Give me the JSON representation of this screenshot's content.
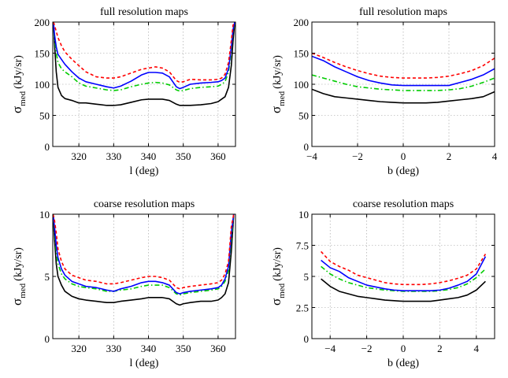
{
  "colors": {
    "black": "#000000",
    "blue": "#0000ff",
    "red": "#ff0000",
    "green": "#00cc00"
  },
  "chart_data": [
    {
      "type": "line",
      "title": "full resolution maps",
      "xlabel": "l (deg)",
      "ylabel_main": "σ",
      "ylabel_sub": "med",
      "ylabel_unit": "(kJy/sr)",
      "xlim": [
        312.5,
        365
      ],
      "ylim": [
        0,
        200
      ],
      "xticks": [
        320,
        330,
        340,
        350,
        360
      ],
      "yticks": [
        0,
        50,
        100,
        150,
        200
      ],
      "xtick_labels": [
        "320",
        "330",
        "340",
        "350",
        "360"
      ],
      "ytick_labels": [
        "0",
        "50",
        "100",
        "150",
        "200"
      ],
      "grid": true,
      "series": [
        {
          "color": "#000000",
          "dash": "solid",
          "x": [
            312.7,
            313.0,
            313.5,
            314,
            315,
            316,
            318,
            320,
            322,
            325,
            328,
            330,
            332,
            335,
            338,
            340,
            342,
            344,
            346,
            348,
            349,
            350,
            352,
            355,
            358,
            360,
            361,
            362,
            363,
            363.8,
            364.3,
            364.8
          ],
          "y": [
            200,
            165,
            120,
            95,
            82,
            77,
            74,
            70,
            70,
            68,
            66,
            66,
            67,
            71,
            75,
            76,
            76,
            76,
            74,
            68,
            66,
            66,
            66,
            67,
            69,
            72,
            76,
            80,
            95,
            130,
            170,
            200
          ]
        },
        {
          "color": "#00cc00",
          "dash": "6 3 1.5 3",
          "x": [
            312.7,
            313.0,
            313.5,
            314,
            315,
            316,
            318,
            320,
            322,
            325,
            328,
            330,
            332,
            335,
            338,
            340,
            342,
            344,
            346,
            348,
            349,
            350,
            352,
            355,
            358,
            360,
            361,
            362,
            363,
            363.8,
            364.3,
            364.8
          ],
          "y": [
            200,
            175,
            150,
            135,
            125,
            120,
            112,
            102,
            97,
            94,
            91,
            90,
            91,
            96,
            100,
            102,
            103,
            102,
            99,
            91,
            89,
            90,
            93,
            95,
            96,
            97,
            100,
            104,
            120,
            155,
            185,
            200
          ]
        },
        {
          "color": "#0000ff",
          "dash": "solid",
          "x": [
            312.7,
            313.0,
            313.5,
            314,
            315,
            316,
            318,
            320,
            322,
            325,
            328,
            330,
            332,
            335,
            338,
            340,
            342,
            344,
            346,
            348,
            349,
            350,
            352,
            355,
            358,
            360,
            361,
            362,
            363,
            363.8,
            364.3,
            364.8
          ],
          "y": [
            200,
            180,
            160,
            148,
            140,
            132,
            120,
            110,
            104,
            100,
            96,
            94,
            97,
            105,
            115,
            119,
            119,
            118,
            112,
            96,
            93,
            95,
            100,
            102,
            103,
            104,
            106,
            110,
            125,
            160,
            188,
            200
          ]
        },
        {
          "color": "#ff0000",
          "dash": "4 3",
          "x": [
            312.7,
            313.0,
            313.5,
            314,
            315,
            316,
            318,
            320,
            322,
            325,
            328,
            330,
            332,
            335,
            338,
            340,
            342,
            344,
            346,
            348,
            349,
            350,
            352,
            355,
            358,
            360,
            361,
            362,
            363,
            363.8,
            364.3,
            364.8
          ],
          "y": [
            200,
            195,
            185,
            175,
            162,
            152,
            140,
            130,
            120,
            112,
            110,
            110,
            112,
            118,
            124,
            126,
            128,
            126,
            120,
            106,
            103,
            104,
            108,
            107,
            107,
            108,
            110,
            116,
            135,
            170,
            195,
            200
          ]
        }
      ]
    },
    {
      "type": "line",
      "title": "full resolution maps",
      "xlabel": "b (deg)",
      "ylabel_main": "σ",
      "ylabel_sub": "med",
      "ylabel_unit": "(kJy/sr)",
      "xlim": [
        -4,
        4
      ],
      "ylim": [
        0,
        200
      ],
      "xticks": [
        -4,
        -2,
        0,
        2,
        4
      ],
      "yticks": [
        0,
        50,
        100,
        150,
        200
      ],
      "xtick_labels": [
        "−4",
        "−2",
        "0",
        "2",
        "4"
      ],
      "ytick_labels": [
        "0",
        "50",
        "100",
        "150",
        "200"
      ],
      "grid": true,
      "series": [
        {
          "color": "#000000",
          "dash": "solid",
          "x": [
            -4,
            -3.5,
            -3,
            -2.5,
            -2,
            -1.5,
            -1,
            -0.5,
            0,
            0.5,
            1,
            1.5,
            2,
            2.5,
            3,
            3.5,
            4
          ],
          "y": [
            92,
            85,
            80,
            78,
            76,
            74,
            72,
            71,
            70,
            70,
            70,
            71,
            73,
            75,
            77,
            80,
            88
          ]
        },
        {
          "color": "#00cc00",
          "dash": "6 3 1.5 3",
          "x": [
            -4,
            -3.5,
            -3,
            -2.5,
            -2,
            -1.5,
            -1,
            -0.5,
            0,
            0.5,
            1,
            1.5,
            2,
            2.5,
            3,
            3.5,
            4
          ],
          "y": [
            115,
            110,
            105,
            100,
            96,
            94,
            92,
            91,
            90,
            90,
            90,
            90,
            91,
            93,
            97,
            103,
            110
          ]
        },
        {
          "color": "#0000ff",
          "dash": "solid",
          "x": [
            -4,
            -3.5,
            -3,
            -2.5,
            -2,
            -1.5,
            -1,
            -0.5,
            0,
            0.5,
            1,
            1.5,
            2,
            2.5,
            3,
            3.5,
            4
          ],
          "y": [
            145,
            138,
            128,
            120,
            112,
            106,
            102,
            99,
            98,
            98,
            98,
            98,
            98,
            103,
            108,
            115,
            125
          ]
        },
        {
          "color": "#ff0000",
          "dash": "4 3",
          "x": [
            -4,
            -3.5,
            -3,
            -2.5,
            -2,
            -1.5,
            -1,
            -0.5,
            0,
            0.5,
            1,
            1.5,
            2,
            2.5,
            3,
            3.5,
            4
          ],
          "y": [
            150,
            143,
            135,
            128,
            122,
            117,
            113,
            111,
            110,
            110,
            110,
            111,
            113,
            117,
            122,
            130,
            142
          ]
        }
      ]
    },
    {
      "type": "line",
      "title": "coarse resolution maps",
      "xlabel": "l (deg)",
      "ylabel_main": "σ",
      "ylabel_sub": "med",
      "ylabel_unit": "(kJy/sr)",
      "xlim": [
        312.5,
        365
      ],
      "ylim": [
        0,
        10
      ],
      "xticks": [
        320,
        330,
        340,
        350,
        360
      ],
      "yticks": [
        0,
        5,
        10
      ],
      "xtick_labels": [
        "320",
        "330",
        "340",
        "350",
        "360"
      ],
      "ytick_labels": [
        "0",
        "5",
        "10"
      ],
      "grid": true,
      "series": [
        {
          "color": "#000000",
          "dash": "solid",
          "x": [
            312.6,
            313,
            313.5,
            314,
            315,
            316,
            318,
            320,
            322,
            325,
            328,
            330,
            332,
            335,
            338,
            340,
            342,
            344,
            346,
            348,
            349,
            350,
            352,
            355,
            358,
            360,
            361,
            362,
            363,
            363.8,
            364.5
          ],
          "y": [
            10,
            8.0,
            6.0,
            5.0,
            4.3,
            3.8,
            3.4,
            3.2,
            3.1,
            3.0,
            2.9,
            2.9,
            3.0,
            3.1,
            3.2,
            3.3,
            3.3,
            3.3,
            3.2,
            2.8,
            2.7,
            2.8,
            2.9,
            3.0,
            3.0,
            3.1,
            3.3,
            3.6,
            4.5,
            7.0,
            10
          ]
        },
        {
          "color": "#00cc00",
          "dash": "6 3 1.5 3",
          "x": [
            312.6,
            313,
            313.5,
            314,
            315,
            316,
            318,
            320,
            322,
            325,
            328,
            330,
            332,
            335,
            338,
            340,
            342,
            344,
            346,
            348,
            349,
            350,
            352,
            355,
            358,
            360,
            361,
            362,
            363,
            363.8,
            364.5
          ],
          "y": [
            10,
            8.8,
            7.0,
            6.0,
            5.2,
            4.8,
            4.4,
            4.2,
            4.1,
            4.0,
            3.8,
            3.8,
            3.9,
            4.0,
            4.2,
            4.3,
            4.3,
            4.3,
            4.1,
            3.6,
            3.5,
            3.6,
            3.7,
            3.8,
            3.9,
            4.0,
            4.2,
            4.6,
            5.5,
            8.0,
            10
          ]
        },
        {
          "color": "#0000ff",
          "dash": "solid",
          "x": [
            312.6,
            313,
            313.5,
            314,
            315,
            316,
            318,
            320,
            322,
            325,
            328,
            330,
            332,
            335,
            338,
            340,
            342,
            344,
            346,
            348,
            349,
            350,
            352,
            355,
            358,
            360,
            361,
            362,
            363,
            363.8,
            364.5
          ],
          "y": [
            10,
            9.0,
            7.5,
            6.5,
            5.6,
            5.1,
            4.6,
            4.4,
            4.2,
            4.1,
            3.9,
            3.8,
            4.0,
            4.2,
            4.5,
            4.6,
            4.6,
            4.5,
            4.3,
            3.7,
            3.6,
            3.7,
            3.8,
            3.9,
            4.0,
            4.1,
            4.3,
            4.8,
            5.8,
            8.5,
            10
          ]
        },
        {
          "color": "#ff0000",
          "dash": "4 3",
          "x": [
            312.6,
            313,
            313.5,
            314,
            315,
            316,
            318,
            320,
            322,
            325,
            328,
            330,
            332,
            335,
            338,
            340,
            342,
            344,
            346,
            348,
            349,
            350,
            352,
            355,
            358,
            360,
            361,
            362,
            363,
            363.8,
            364.5
          ],
          "y": [
            10,
            9.5,
            8.5,
            7.2,
            6.2,
            5.6,
            5.1,
            4.9,
            4.7,
            4.6,
            4.4,
            4.4,
            4.5,
            4.7,
            4.9,
            5.0,
            5.0,
            4.9,
            4.7,
            4.1,
            4.0,
            4.1,
            4.2,
            4.3,
            4.4,
            4.5,
            4.7,
            5.2,
            6.2,
            9.0,
            10
          ]
        }
      ]
    },
    {
      "type": "line",
      "title": "coarse resolution maps",
      "xlabel": "b (deg)",
      "ylabel_main": "σ",
      "ylabel_sub": "med",
      "ylabel_unit": "(kJy/sr)",
      "xlim": [
        -5,
        5
      ],
      "ylim": [
        0,
        10
      ],
      "xticks": [
        -4,
        -2,
        0,
        2,
        4
      ],
      "yticks": [
        0,
        2.5,
        5,
        7.5,
        10
      ],
      "xtick_labels": [
        "−4",
        "−2",
        "0",
        "2",
        "4"
      ],
      "ytick_labels": [
        "0",
        "2.5",
        "5",
        "7.5",
        "10"
      ],
      "grid": true,
      "series": [
        {
          "color": "#000000",
          "dash": "solid",
          "x": [
            -4.5,
            -4,
            -3.5,
            -3,
            -2.5,
            -2,
            -1.5,
            -1,
            -0.5,
            0,
            0.5,
            1,
            1.5,
            2,
            2.5,
            3,
            3.5,
            4,
            4.5
          ],
          "y": [
            4.8,
            4.2,
            3.8,
            3.6,
            3.4,
            3.3,
            3.2,
            3.1,
            3.05,
            3.0,
            3.0,
            3.0,
            3.0,
            3.1,
            3.2,
            3.3,
            3.5,
            3.9,
            4.6
          ]
        },
        {
          "color": "#00cc00",
          "dash": "6 3 1.5 3",
          "x": [
            -4.5,
            -4,
            -3.5,
            -3,
            -2.5,
            -2,
            -1.5,
            -1,
            -0.5,
            0,
            0.5,
            1,
            1.5,
            2,
            2.5,
            3,
            3.5,
            4,
            4.5
          ],
          "y": [
            5.8,
            5.2,
            4.8,
            4.5,
            4.3,
            4.1,
            4.0,
            3.9,
            3.85,
            3.8,
            3.8,
            3.8,
            3.8,
            3.85,
            3.95,
            4.1,
            4.4,
            4.9,
            5.6
          ]
        },
        {
          "color": "#0000ff",
          "dash": "solid",
          "x": [
            -4.5,
            -4,
            -3.5,
            -3,
            -2.5,
            -2,
            -1.5,
            -1,
            -0.5,
            0,
            0.5,
            1,
            1.5,
            2,
            2.5,
            3,
            3.5,
            4,
            4.5
          ],
          "y": [
            6.3,
            5.7,
            5.4,
            4.9,
            4.6,
            4.3,
            4.15,
            4.0,
            3.9,
            3.85,
            3.85,
            3.85,
            3.85,
            3.9,
            4.05,
            4.3,
            4.6,
            5.2,
            6.6
          ]
        },
        {
          "color": "#ff0000",
          "dash": "4 3",
          "x": [
            -4.5,
            -4,
            -3.5,
            -3,
            -2.5,
            -2,
            -1.5,
            -1,
            -0.5,
            0,
            0.5,
            1,
            1.5,
            2,
            2.5,
            3,
            3.5,
            4,
            4.5
          ],
          "y": [
            7.0,
            6.2,
            5.8,
            5.5,
            5.1,
            4.9,
            4.7,
            4.5,
            4.4,
            4.35,
            4.35,
            4.35,
            4.4,
            4.5,
            4.65,
            4.85,
            5.1,
            5.6,
            6.8
          ]
        }
      ]
    }
  ]
}
